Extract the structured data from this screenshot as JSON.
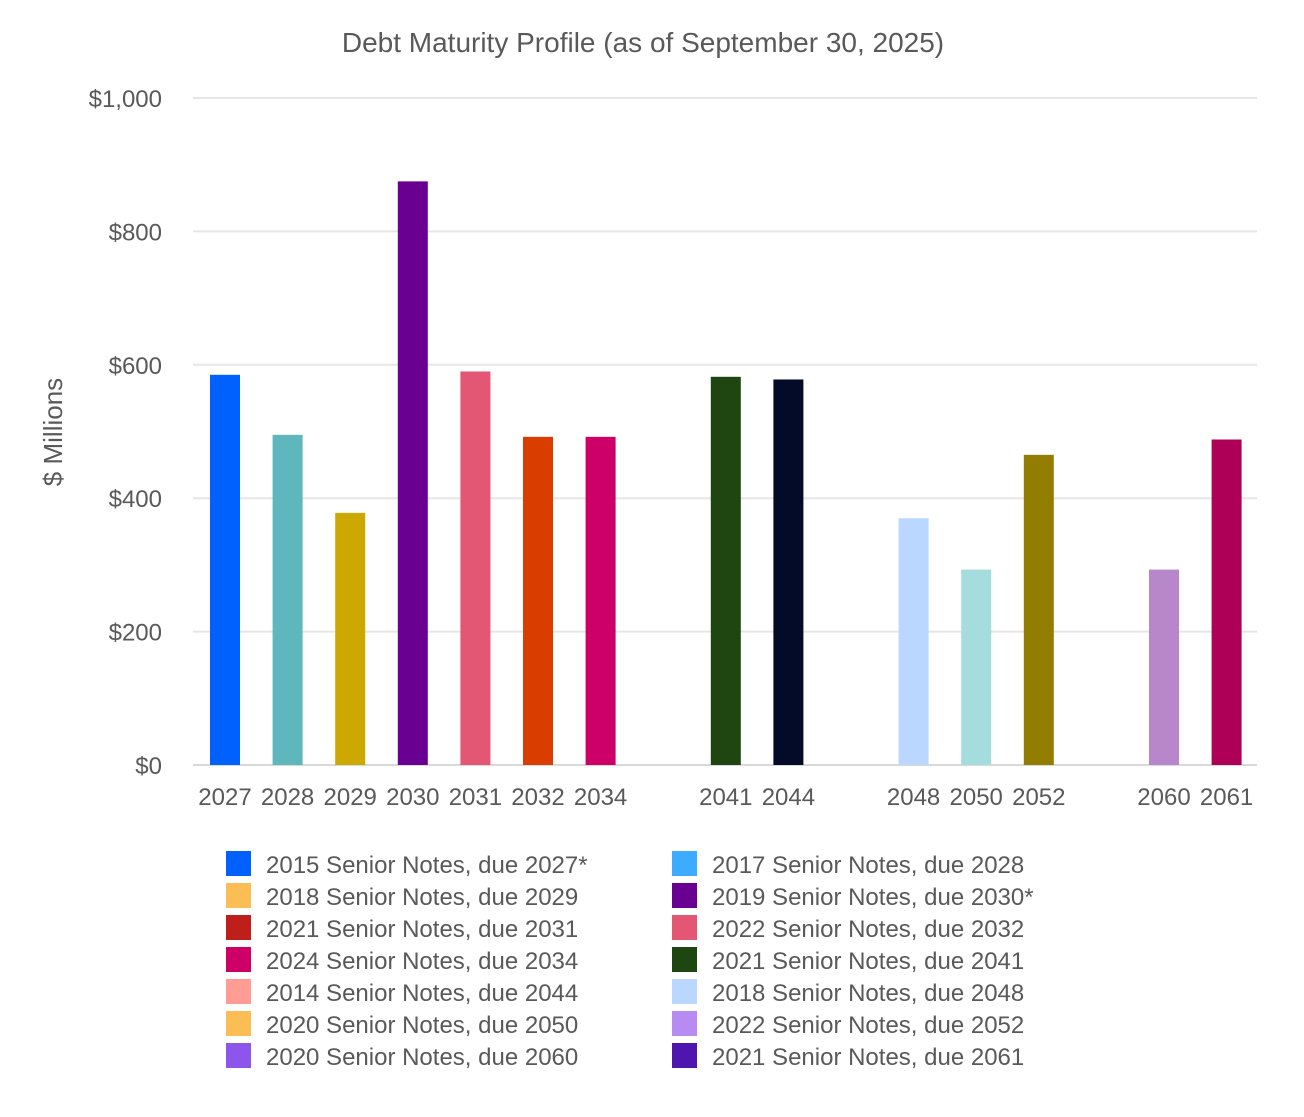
{
  "chart_data": {
    "type": "bar",
    "title": "Debt Maturity Profile (as of September 30, 2025)",
    "xlabel": "",
    "ylabel": "$ Millions",
    "ylim": [
      0,
      1000
    ],
    "yticks": [
      0,
      200,
      400,
      600,
      800,
      1000
    ],
    "ytick_labels": [
      "$0",
      "$200",
      "$400",
      "$600",
      "$800",
      "$1,000"
    ],
    "grid": true,
    "legend_position": "bottom",
    "categories": [
      "2027",
      "2028",
      "2029",
      "2030",
      "2031",
      "2032",
      "2034",
      "2041",
      "2044",
      "2048",
      "2050",
      "2052",
      "2060",
      "2061"
    ],
    "values": [
      585,
      495,
      378,
      875,
      590,
      492,
      492,
      582,
      578,
      370,
      293,
      465,
      293,
      488
    ],
    "colors": [
      "#0061FF",
      "#5DB7BD",
      "#CDA800",
      "#6A0092",
      "#E35774",
      "#D93E00",
      "#CC0066",
      "#1F4511",
      "#040B28",
      "#B9D7FF",
      "#A5DDDE",
      "#937D00",
      "#B887CB",
      "#AD0056"
    ],
    "legend": [
      {
        "label": "2015 Senior Notes, due 2027*",
        "color": "#0061FF"
      },
      {
        "label": "2017 Senior Notes, due 2028",
        "color": "#3DABFF"
      },
      {
        "label": "2018 Senior Notes, due 2029",
        "color": "#FBBE55"
      },
      {
        "label": "2019 Senior Notes, due 2030*",
        "color": "#6A0092"
      },
      {
        "label": "2021 Senior Notes, due 2031",
        "color": "#BF1F1A"
      },
      {
        "label": "2022 Senior Notes, due 2032",
        "color": "#E35774"
      },
      {
        "label": "2024 Senior Notes, due 2034",
        "color": "#CC0066"
      },
      {
        "label": "2021 Senior Notes, due 2041",
        "color": "#1F4511"
      },
      {
        "label": "2014 Senior Notes, due 2044",
        "color": "#FF9C93"
      },
      {
        "label": "2018 Senior Notes, due 2048",
        "color": "#B9D7FF"
      },
      {
        "label": "2020 Senior Notes, due 2050",
        "color": "#FBBE55"
      },
      {
        "label": "2022 Senior Notes, due 2052",
        "color": "#B78CF2"
      },
      {
        "label": "2020 Senior Notes, due 2060",
        "color": "#8E55EC"
      },
      {
        "label": "2021 Senior Notes, due 2061",
        "color": "#4E16AE"
      }
    ]
  }
}
